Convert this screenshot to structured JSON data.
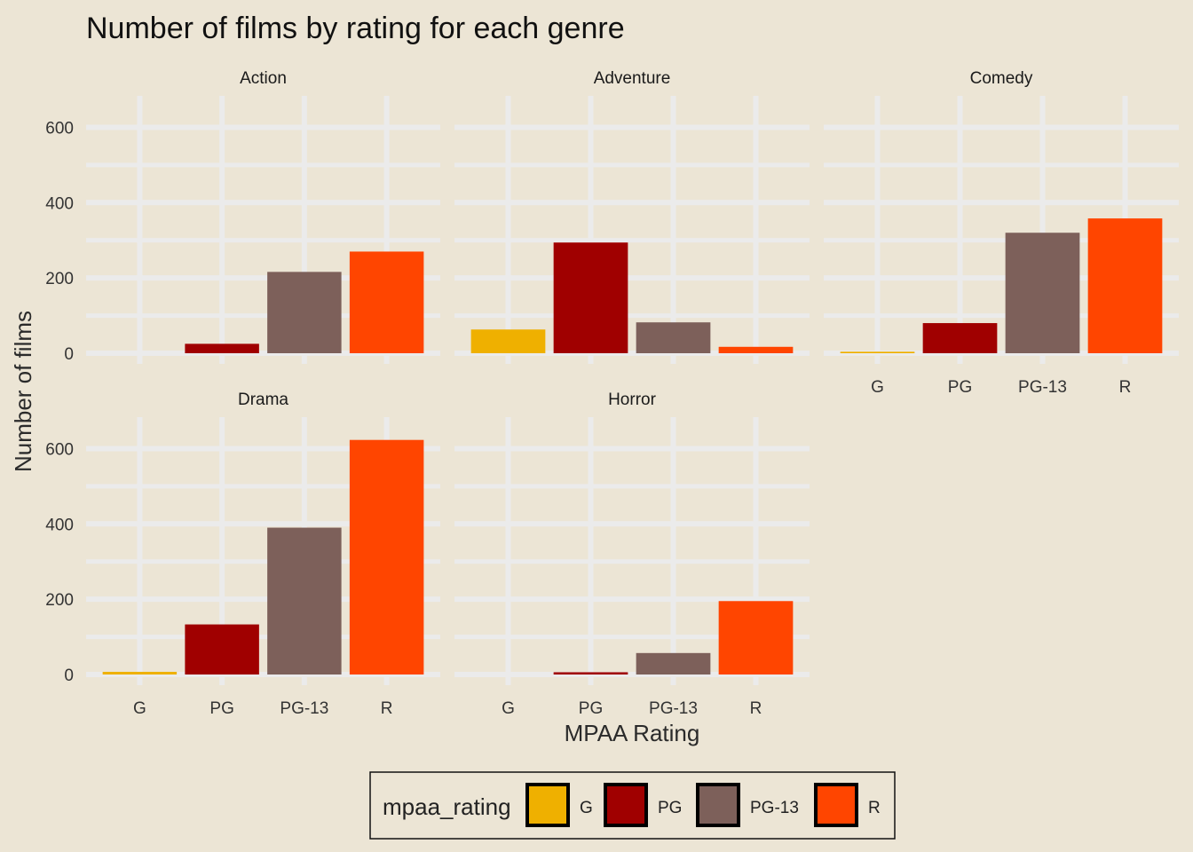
{
  "chart_data": {
    "type": "bar",
    "title": "Number of films by rating for each genre",
    "xlabel": "MPAA Rating",
    "ylabel": "Number of films",
    "categories": [
      "G",
      "PG",
      "PG-13",
      "R"
    ],
    "ylim": [
      0,
      600
    ],
    "yticks": [
      0,
      200,
      400,
      600
    ],
    "colors": {
      "G": "#efb000",
      "PG": "#a00000",
      "PG-13": "#7d605a",
      "R": "#ff4500"
    },
    "panels": [
      {
        "name": "Action",
        "values": [
          0,
          25,
          216,
          270
        ]
      },
      {
        "name": "Adventure",
        "values": [
          63,
          294,
          82,
          17
        ]
      },
      {
        "name": "Comedy",
        "values": [
          4,
          80,
          320,
          358
        ]
      },
      {
        "name": "Drama",
        "values": [
          7,
          133,
          390,
          623
        ]
      },
      {
        "name": "Horror",
        "values": [
          0,
          6,
          57,
          195
        ]
      }
    ],
    "legend": {
      "title": "mpaa_rating",
      "items": [
        "G",
        "PG",
        "PG-13",
        "R"
      ],
      "placement": "bottom"
    },
    "grid": true
  }
}
